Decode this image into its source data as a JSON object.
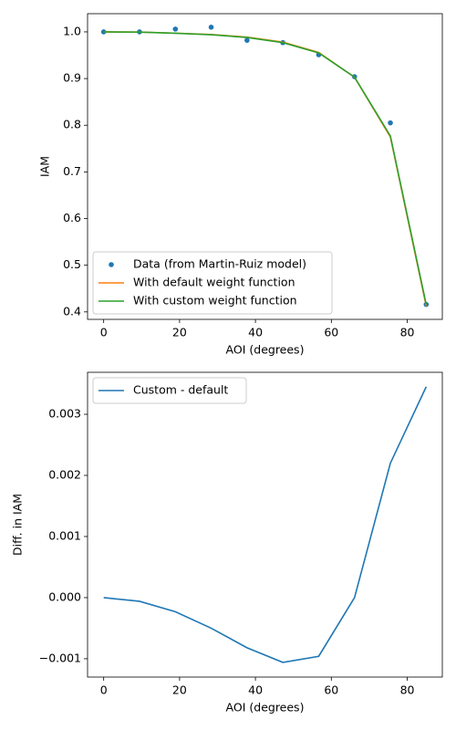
{
  "chart_data": [
    {
      "type": "line",
      "xlabel": "AOI (degrees)",
      "ylabel": "IAM",
      "x": [
        0,
        9.44,
        18.89,
        28.33,
        37.78,
        47.22,
        56.67,
        66.11,
        75.56,
        85
      ],
      "xlim": [
        -4.25,
        89.25
      ],
      "xticks": [
        0,
        20,
        40,
        60,
        80
      ],
      "ylim": [
        0.384,
        1.039
      ],
      "yticks": [
        0.4,
        0.5,
        0.6,
        0.7,
        0.8,
        0.9,
        {
          "value": 1.0,
          "label": "1.0"
        }
      ],
      "legend": "lower-left",
      "series": [
        {
          "name": "Data (from Martin-Ruiz model)",
          "color": "#1f77b4",
          "marker": true,
          "line": false,
          "values": [
            1.0,
            1.0,
            1.006,
            1.01,
            0.982,
            0.977,
            0.951,
            0.904,
            0.805,
            0.416
          ]
        },
        {
          "name": "With default weight function",
          "color": "#ff7f0e",
          "marker": false,
          "line": true,
          "values": [
            1.0,
            0.9996,
            0.9972,
            0.9945,
            0.9888,
            0.9781,
            0.956,
            0.903,
            0.7748,
            0.4126
          ]
        },
        {
          "name": "With custom weight function",
          "color": "#2ca02c",
          "marker": false,
          "line": true,
          "values": [
            1.0,
            0.9995,
            0.997,
            0.994,
            0.988,
            0.977,
            0.955,
            0.903,
            0.777,
            0.416
          ]
        }
      ]
    },
    {
      "type": "line",
      "xlabel": "AOI (degrees)",
      "ylabel": "Diff. in IAM",
      "x": [
        0,
        9.44,
        18.89,
        28.33,
        37.78,
        47.22,
        56.67,
        66.11,
        75.56,
        85
      ],
      "xlim": [
        -4.25,
        89.25
      ],
      "xticks": [
        0,
        20,
        40,
        60,
        80
      ],
      "ylim": [
        -0.0013,
        0.003687
      ],
      "yticks": [
        {
          "value": -0.001,
          "label": "−0.001"
        },
        {
          "value": 0,
          "label": "0.000"
        },
        {
          "value": 0.001,
          "label": "0.001"
        },
        {
          "value": 0.002,
          "label": "0.002"
        },
        {
          "value": 0.003,
          "label": "0.003"
        }
      ],
      "legend": "upper-left",
      "series": [
        {
          "name": "Custom - default",
          "color": "#1f77b4",
          "marker": false,
          "line": true,
          "values": [
            0,
            -6e-05,
            -0.00023,
            -0.0005,
            -0.00082,
            -0.00106,
            -0.00096,
            0.0,
            0.0022,
            0.00345
          ]
        }
      ]
    }
  ]
}
